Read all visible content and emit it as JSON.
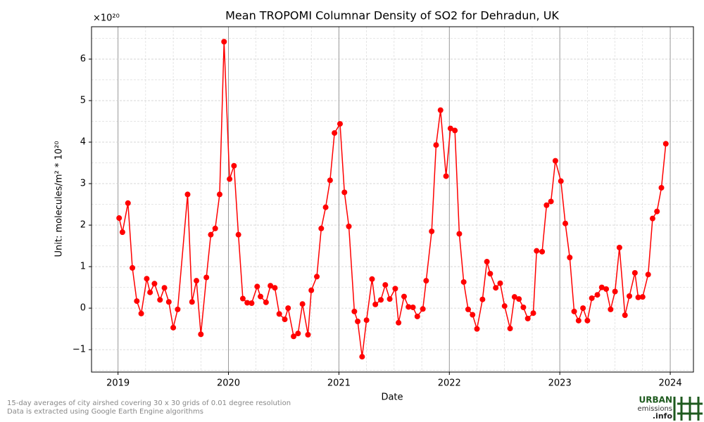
{
  "chart_data": {
    "type": "line",
    "title": "Mean TROPOMI Columnar Density of SO2 for Dehradun, UK",
    "x_label": "Date",
    "y_label": "Unit: molecules/m² * 10²⁰",
    "y_offset_label": "×10²⁰",
    "footnotes": [
      "15-day averages of city airshed covering 30 x 30 grids of 0.01 degree resolution",
      "Data is extracted using Google Earth Engine algorithms"
    ],
    "logo": [
      "URBAN",
      "emissions",
      ".info"
    ],
    "grid": true,
    "series": [
      {
        "name": "SO2",
        "color": "#ff0000",
        "x": [
          2019.01,
          2019.04,
          2019.09,
          2019.13,
          2019.17,
          2019.21,
          2019.26,
          2019.29,
          2019.33,
          2019.38,
          2019.42,
          2019.46,
          2019.5,
          2019.54,
          2019.63,
          2019.67,
          2019.71,
          2019.75,
          2019.8,
          2019.84,
          2019.88,
          2019.92,
          2019.96,
          2020.01,
          2020.05,
          2020.09,
          2020.13,
          2020.17,
          2020.21,
          2020.26,
          2020.29,
          2020.34,
          2020.38,
          2020.42,
          2020.46,
          2020.51,
          2020.54,
          2020.59,
          2020.63,
          2020.67,
          2020.72,
          2020.75,
          2020.8,
          2020.84,
          2020.88,
          2020.92,
          2020.96,
          2021.01,
          2021.05,
          2021.09,
          2021.14,
          2021.17,
          2021.21,
          2021.25,
          2021.3,
          2021.33,
          2021.38,
          2021.42,
          2021.46,
          2021.51,
          2021.54,
          2021.59,
          2021.63,
          2021.67,
          2021.71,
          2021.76,
          2021.79,
          2021.84,
          2021.88,
          2021.92,
          2021.97,
          2022.01,
          2022.05,
          2022.09,
          2022.13,
          2022.17,
          2022.21,
          2022.25,
          2022.3,
          2022.34,
          2022.37,
          2022.42,
          2022.46,
          2022.5,
          2022.55,
          2022.59,
          2022.63,
          2022.67,
          2022.71,
          2022.76,
          2022.79,
          2022.84,
          2022.88,
          2022.92,
          2022.96,
          2023.01,
          2023.05,
          2023.09,
          2023.13,
          2023.17,
          2023.21,
          2023.25,
          2023.29,
          2023.34,
          2023.38,
          2023.42,
          2023.46,
          2023.5,
          2023.54,
          2023.59,
          2023.63,
          2023.68,
          2023.71,
          2023.75,
          2023.8,
          2023.84,
          2023.88,
          2023.92,
          2023.96
        ],
        "values": [
          2.17,
          1.83,
          2.53,
          0.97,
          0.17,
          -0.13,
          0.71,
          0.38,
          0.59,
          0.2,
          0.49,
          0.15,
          -0.47,
          -0.03,
          2.74,
          0.15,
          0.66,
          -0.63,
          0.74,
          1.77,
          1.92,
          2.74,
          6.42,
          3.11,
          3.43,
          1.77,
          0.23,
          0.13,
          0.12,
          0.52,
          0.28,
          0.14,
          0.54,
          0.49,
          -0.14,
          -0.27,
          0.0,
          -0.68,
          -0.61,
          0.1,
          -0.64,
          0.43,
          0.76,
          1.92,
          2.43,
          3.08,
          4.22,
          4.44,
          2.79,
          1.97,
          -0.08,
          -0.32,
          -1.17,
          -0.29,
          0.7,
          0.09,
          0.2,
          0.56,
          0.22,
          0.47,
          -0.35,
          0.28,
          0.03,
          0.02,
          -0.2,
          -0.02,
          0.66,
          1.85,
          3.93,
          4.77,
          3.18,
          4.33,
          4.28,
          1.79,
          0.63,
          -0.03,
          -0.16,
          -0.5,
          0.21,
          1.12,
          0.83,
          0.49,
          0.6,
          0.05,
          -0.49,
          0.27,
          0.22,
          0.02,
          -0.25,
          -0.12,
          1.38,
          1.36,
          2.48,
          2.57,
          3.55,
          3.06,
          2.04,
          1.22,
          -0.08,
          -0.3,
          0.0,
          -0.3,
          0.24,
          0.32,
          0.5,
          0.46,
          -0.03,
          0.4,
          1.46,
          -0.17,
          0.29,
          0.85,
          0.26,
          0.27,
          0.81,
          2.16,
          2.33,
          2.9,
          3.96
        ]
      }
    ],
    "xlim": [
      2018.76,
      2024.21
    ],
    "xticks": [
      2019,
      2020,
      2021,
      2022,
      2023,
      2024
    ],
    "ylim": [
      -1.54,
      6.78
    ],
    "yticks": [
      {
        "value": -1,
        "label": "−1"
      },
      0,
      1,
      2,
      3,
      4,
      5,
      6
    ]
  }
}
